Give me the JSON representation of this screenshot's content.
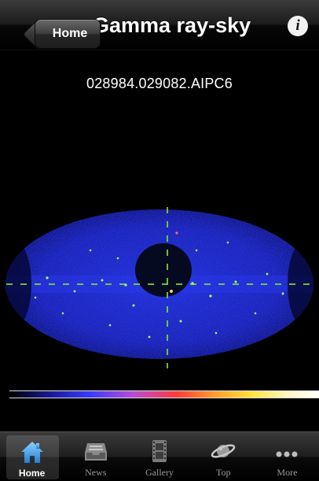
{
  "navbar": {
    "back_label": "Home",
    "title": "Gamma ray-sky",
    "info_glyph": "i"
  },
  "image": {
    "code": "028984.029082.AIPC6"
  },
  "tabs": [
    {
      "label": "Home",
      "icon": "home-icon",
      "selected": true
    },
    {
      "label": "News",
      "icon": "inbox-tray-icon",
      "selected": false
    },
    {
      "label": "Gallery",
      "icon": "film-strip-icon",
      "selected": false
    },
    {
      "label": "Top",
      "icon": "planet-ring-icon",
      "selected": false
    },
    {
      "label": "More",
      "icon": "ellipsis-icon",
      "selected": false
    }
  ],
  "colors": {
    "accent_selected_tab": "#3fa0e8",
    "sky_background": "#1a22c8"
  }
}
